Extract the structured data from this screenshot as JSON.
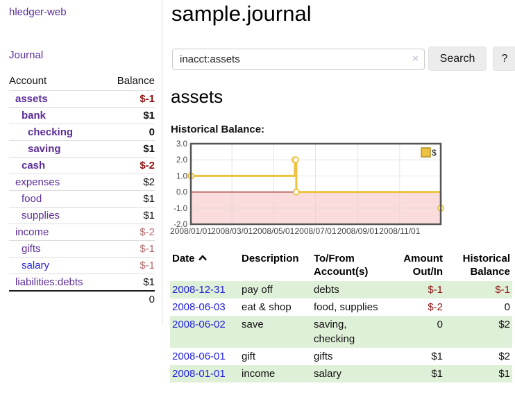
{
  "app": {
    "brand": "hledger-web",
    "nav_journal": "Journal"
  },
  "sidebar": {
    "headers": {
      "account": "Account",
      "balance": "Balance"
    },
    "accounts": [
      {
        "name": "assets",
        "indent": 1,
        "bold": true,
        "balance": "$-1",
        "balance_class": "neg-strong"
      },
      {
        "name": "bank",
        "indent": 2,
        "bold": true,
        "balance": "$1",
        "balance_class": "pos"
      },
      {
        "name": "checking",
        "indent": 3,
        "bold": true,
        "balance": "0",
        "balance_class": "pos"
      },
      {
        "name": "saving",
        "indent": 3,
        "bold": true,
        "balance": "$1",
        "balance_class": "pos"
      },
      {
        "name": "cash",
        "indent": 2,
        "bold": true,
        "balance": "$-2",
        "balance_class": "neg-strong"
      },
      {
        "name": "expenses",
        "indent": 1,
        "bold": false,
        "balance": "$2",
        "balance_class": "pos"
      },
      {
        "name": "food",
        "indent": 2,
        "bold": false,
        "balance": "$1",
        "balance_class": "pos"
      },
      {
        "name": "supplies",
        "indent": 2,
        "bold": false,
        "balance": "$1",
        "balance_class": "pos"
      },
      {
        "name": "income",
        "indent": 1,
        "bold": false,
        "balance": "$-2",
        "balance_class": "neg-soft"
      },
      {
        "name": "gifts",
        "indent": 2,
        "bold": false,
        "balance": "$-1",
        "balance_class": "neg-soft"
      },
      {
        "name": "salary",
        "indent": 2,
        "bold": false,
        "balance": "$-1",
        "balance_class": "neg-soft",
        "link_class": "blue"
      },
      {
        "name": "liabilities:debts",
        "indent": 1,
        "bold": false,
        "balance": "$1",
        "balance_class": "pos"
      }
    ],
    "total": "0"
  },
  "header": {
    "title": "sample.journal"
  },
  "search": {
    "value": "inacct:assets",
    "clear_icon": "×",
    "button_label": "Search",
    "help_label": "?"
  },
  "account_page": {
    "heading": "assets",
    "chart_heading": "Historical Balance:"
  },
  "chart_data": {
    "type": "line",
    "title": "Historical Balance",
    "step": true,
    "series": [
      {
        "name": "$",
        "color": "#edc240",
        "points": [
          {
            "x": "2008-01-01",
            "y": 1
          },
          {
            "x": "2008-06-01",
            "y": 2
          },
          {
            "x": "2008-06-02",
            "y": 2
          },
          {
            "x": "2008-06-03",
            "y": 0
          },
          {
            "x": "2008-12-31",
            "y": -1
          }
        ]
      }
    ],
    "x_range": [
      "2008-01-01",
      "2008-12-31"
    ],
    "x_ticks": [
      "2008/01/01",
      "2008/03/01",
      "2008/05/01",
      "2008/07/01",
      "2008/09/01",
      "2008/11/01"
    ],
    "y_ticks": [
      "3.0",
      "2.0",
      "1.0",
      "0.0",
      "-1.0",
      "-2.0"
    ],
    "ylim": [
      -2,
      3
    ],
    "grid": true,
    "legend": {
      "label": "$",
      "position": "top-right"
    },
    "colors": {
      "line": "#edc240",
      "marker_fill": "#ffffff",
      "negative_region": "#fbdcdc",
      "zero_line": "#8f0e0e",
      "border": "#545454",
      "gridline": "#d9d9d9",
      "tick_text": "#444444"
    }
  },
  "register": {
    "headers": [
      {
        "lines": [
          "Date"
        ],
        "align": "left",
        "sorted": true
      },
      {
        "lines": [
          "Description"
        ],
        "align": "left"
      },
      {
        "lines": [
          "To/From",
          "Account(s)"
        ],
        "align": "left"
      },
      {
        "lines": [
          "Amount",
          "Out/In"
        ],
        "align": "right"
      },
      {
        "lines": [
          "Historical",
          "Balance"
        ],
        "align": "right"
      }
    ],
    "rows": [
      {
        "date": "2008-12-31",
        "description": "pay off",
        "accounts": "debts",
        "amount": "$-1",
        "amount_class": "neg",
        "balance": "$-1",
        "balance_class": "neg",
        "shaded": true
      },
      {
        "date": "2008-06-03",
        "description": "eat & shop",
        "accounts": "food, supplies",
        "amount": "$-2",
        "amount_class": "neg",
        "balance": "0",
        "balance_class": "pos",
        "shaded": false
      },
      {
        "date": "2008-06-02",
        "description": "save",
        "accounts": "saving, checking",
        "amount": "0",
        "amount_class": "pos",
        "balance": "$2",
        "balance_class": "pos",
        "shaded": true
      },
      {
        "date": "2008-06-01",
        "description": "gift",
        "accounts": "gifts",
        "amount": "$1",
        "amount_class": "pos",
        "balance": "$2",
        "balance_class": "pos",
        "shaded": false
      },
      {
        "date": "2008-01-01",
        "description": "income",
        "accounts": "salary",
        "amount": "$1",
        "amount_class": "pos",
        "balance": "$1",
        "balance_class": "pos",
        "shaded": true
      }
    ]
  },
  "colors": {
    "link_purple": "#5b2c98",
    "link_blue": "#2222dd",
    "neg_strong": "#8f1111",
    "neg_soft": "#b36a6a",
    "row_shade_green": "#dff0d8",
    "button_bg": "#ececec"
  }
}
